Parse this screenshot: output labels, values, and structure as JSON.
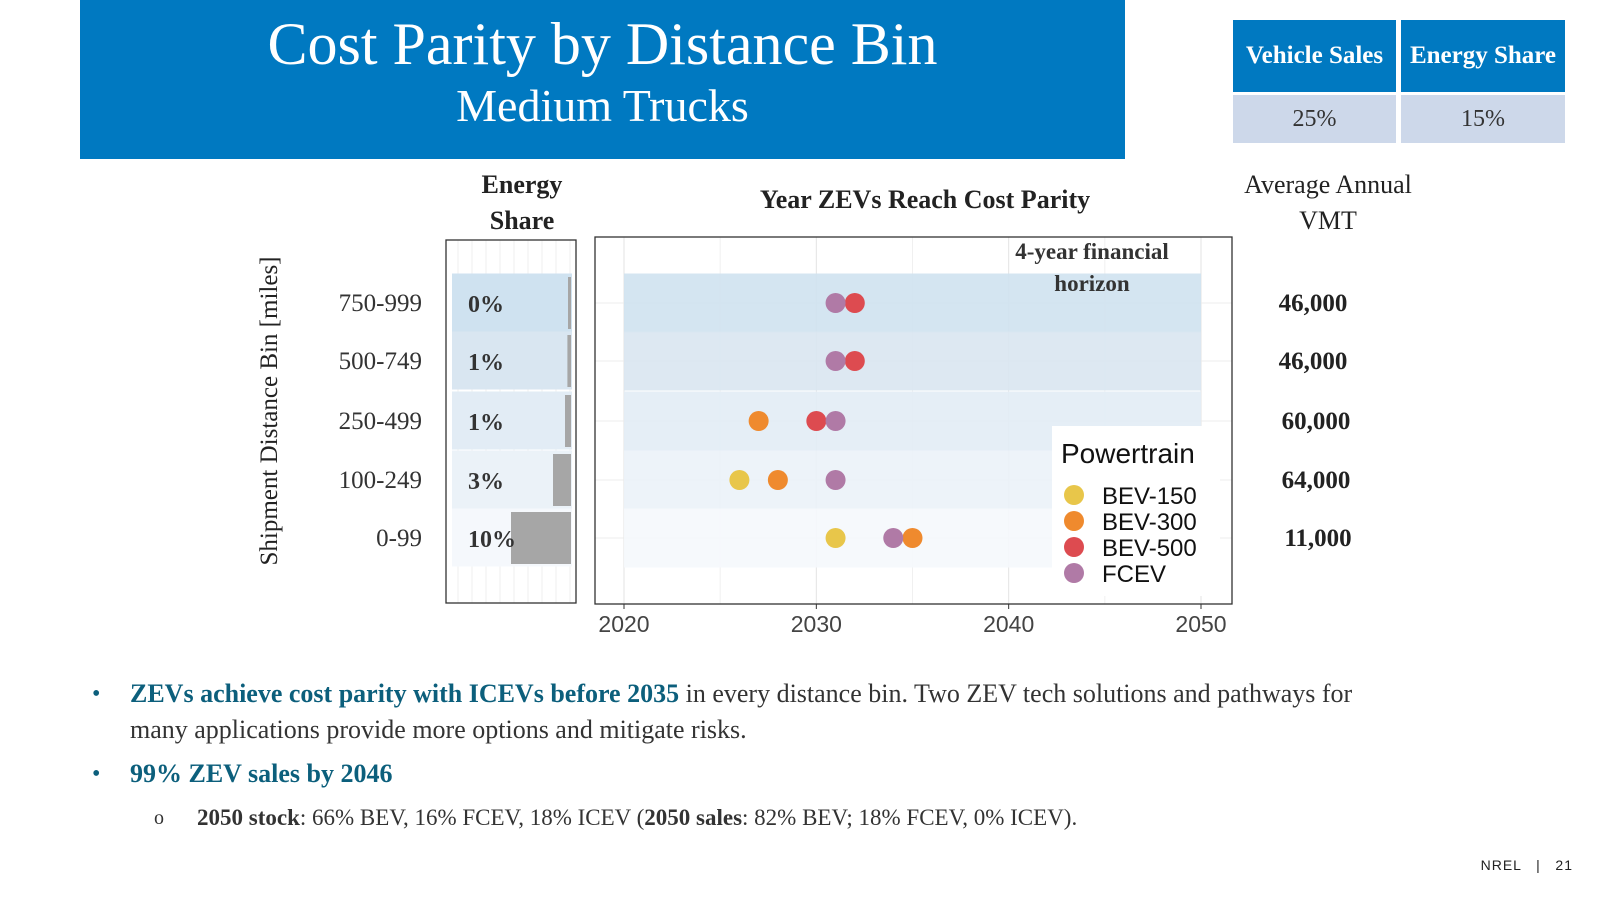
{
  "title": "Cost Parity by Distance Bin",
  "subtitle": "Medium Trucks",
  "summary_table": {
    "headers": [
      "Vehicle Sales",
      "Energy Share"
    ],
    "values": [
      "25%",
      "15%"
    ]
  },
  "colors": {
    "title_band": "#0079c1",
    "summary_value_bg": "#cdd8ea",
    "highlight_text": "#0c5f7c",
    "bar": "#a6a6a6"
  },
  "chart_data": [
    {
      "type": "bar",
      "title": "Energy Share",
      "ylabel": "Shipment Distance Bin [miles]",
      "categories": [
        "750-999",
        "500-749",
        "250-499",
        "100-249",
        "0-99"
      ],
      "values": [
        0.2,
        0.6,
        1,
        3,
        10
      ],
      "labels": [
        "0%",
        "1%",
        "1%",
        "3%",
        "10%"
      ]
    },
    {
      "type": "scatter",
      "title": "Year ZEVs Reach Cost Parity",
      "annotation": "4-year financial horizon",
      "x_ticks": [
        "2020",
        "2030",
        "2040",
        "2050"
      ],
      "xlim": [
        2020,
        2050
      ],
      "categories": [
        "750-999",
        "500-749",
        "250-499",
        "100-249",
        "0-99"
      ],
      "legend_title": "Powertrain",
      "legend_position": "bottom-right",
      "series": [
        {
          "name": "BEV-150",
          "color": "#e8c64a",
          "values": [
            null,
            null,
            null,
            2026,
            2031
          ]
        },
        {
          "name": "BEV-300",
          "color": "#ef8a2e",
          "values": [
            null,
            null,
            2027,
            2028,
            2035
          ]
        },
        {
          "name": "BEV-500",
          "color": "#dd4b50",
          "values": [
            2032,
            2032,
            2030,
            null,
            null
          ]
        },
        {
          "name": "FCEV",
          "color": "#b07aa6",
          "values": [
            2031,
            2031,
            2031,
            2031,
            2034
          ]
        }
      ]
    }
  ],
  "vmt": {
    "title": "Average Annual VMT",
    "values": [
      "46,000",
      "46,000",
      "60,000",
      "64,000",
      "11,000"
    ]
  },
  "bullets": {
    "b1_bold": "ZEVs achieve cost parity with ICEVs before 2035",
    "b1_rest": " in every distance bin. Two ZEV tech solutions and pathways for many applications provide more options and mitigate risks.",
    "b2_bold": "99% ZEV sales by 2046",
    "sub_bold1": "2050 stock",
    "sub_text1": ": 66% BEV, 16% FCEV, 18% ICEV (",
    "sub_bold2": "2050 sales",
    "sub_text2": ": 82% BEV; 18% FCEV, 0% ICEV)."
  },
  "footer": {
    "org": "NREL",
    "separator": "|",
    "page": "21"
  }
}
